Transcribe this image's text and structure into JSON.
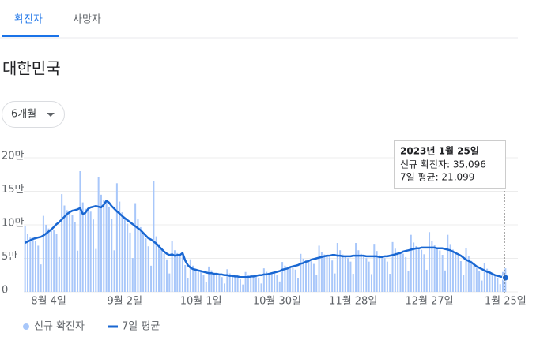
{
  "tabs": [
    "확진자",
    "사망자"
  ],
  "region": "대한민국",
  "range_selector": "6개월",
  "chart_data": {
    "type": "bar_line",
    "categories": [
      null,
      null,
      null,
      null,
      null,
      null,
      null,
      null,
      null,
      "8월 4일",
      null,
      null,
      null,
      null,
      null,
      null,
      null,
      null,
      null,
      null,
      null,
      null,
      null,
      null,
      null,
      null,
      null,
      null,
      null,
      null,
      null,
      null,
      null,
      null,
      null,
      null,
      null,
      null,
      "9월 2일",
      null,
      null,
      null,
      null,
      null,
      null,
      null,
      null,
      null,
      null,
      null,
      null,
      null,
      null,
      null,
      null,
      null,
      null,
      null,
      null,
      null,
      null,
      null,
      null,
      null,
      null,
      null,
      null,
      "10월 1일",
      null,
      null,
      null,
      null,
      null,
      null,
      null,
      null,
      null,
      null,
      null,
      null,
      null,
      null,
      null,
      null,
      null,
      null,
      null,
      null,
      null,
      null,
      null,
      null,
      null,
      null,
      null,
      null,
      "10월 30일",
      null,
      null,
      null,
      null,
      null,
      null,
      null,
      null,
      null,
      null,
      null,
      null,
      null,
      null,
      null,
      null,
      null,
      null,
      null,
      null,
      null,
      null,
      null,
      null,
      null,
      null,
      null,
      null,
      "11월 28일",
      null,
      null,
      null,
      null,
      null,
      null,
      null,
      null,
      null,
      null,
      null,
      null,
      null,
      null,
      null,
      null,
      null,
      null,
      null,
      null,
      null,
      null,
      null,
      null,
      null,
      null,
      null,
      null,
      "12월 27일",
      null,
      null,
      null,
      null,
      null,
      null,
      null,
      null,
      null,
      null,
      null,
      null,
      null,
      null,
      null,
      null,
      null,
      null,
      null,
      null,
      null,
      null,
      null,
      null,
      null,
      null,
      null,
      null,
      "1월 25일"
    ],
    "series": [
      {
        "name": "신규 확진자",
        "color": "#a8c7fa",
        "values": [
          98600,
          86300,
          80900,
          79000,
          76000,
          68900,
          41000,
          113400,
          100100,
          94500,
          93000,
          92200,
          85900,
          52000,
          145800,
          128800,
          121800,
          119000,
          115000,
          103700,
          61500,
          180000,
          133400,
          123900,
          124000,
          119700,
          108000,
          64000,
          171500,
          144900,
          136500,
          136000,
          126400,
          108800,
          62000,
          162000,
          134600,
          118700,
          110000,
          101700,
          88400,
          50500,
          132300,
          109300,
          96600,
          88000,
          79800,
          68000,
          39000,
          165000,
          82800,
          71400,
          64000,
          57000,
          48500,
          27500,
          75600,
          62100,
          57800,
          55000,
          55100,
          40000,
          20000,
          48600,
          39100,
          34700,
          32000,
          29500,
          25500,
          14500,
          37800,
          32200,
          28400,
          27000,
          24700,
          22100,
          12500,
          33800,
          27600,
          25200,
          23000,
          21900,
          18700,
          11000,
          29700,
          25300,
          24200,
          23000,
          22800,
          21300,
          12500,
          35100,
          29900,
          28400,
          28000,
          27600,
          25500,
          15500,
          44600,
          39100,
          36800,
          37000,
          36100,
          33200,
          20000,
          56700,
          49500,
          47300,
          46000,
          45600,
          41700,
          25000,
          68900,
          59800,
          55700,
          54000,
          51300,
          46800,
          27500,
          72900,
          62100,
          55700,
          53000,
          50400,
          45100,
          27000,
          72900,
          62100,
          56700,
          54000,
          50400,
          45100,
          26500,
          71600,
          61000,
          54600,
          52000,
          50400,
          45100,
          27000,
          74300,
          64400,
          59900,
          58000,
          57000,
          51900,
          31000,
          85100,
          73600,
          68300,
          65000,
          62700,
          56100,
          33000,
          89100,
          75900,
          69300,
          65000,
          61800,
          55300,
          32000,
          85100,
          71300,
          63000,
          58000,
          53200,
          45900,
          25500,
          64800,
          52900,
          46200,
          41000,
          36100,
          30600,
          17000,
          43200,
          34500,
          30500,
          27000,
          23800,
          20400,
          11500,
          29700,
          35096
        ]
      },
      {
        "name": "7일 평균",
        "color": "#1967d2",
        "values": [
          73000,
          75000,
          77000,
          79000,
          80000,
          81000,
          82000,
          84000,
          87000,
          90000,
          93000,
          97000,
          101000,
          104000,
          108000,
          112000,
          116000,
          119000,
          121000,
          122000,
          123000,
          125000,
          116000,
          118000,
          124000,
          126000,
          127000,
          128000,
          127000,
          126000,
          130000,
          136000,
          133000,
          128000,
          124000,
          120000,
          117000,
          113000,
          110000,
          107000,
          104000,
          101000,
          98000,
          95000,
          92000,
          88000,
          84000,
          80000,
          78000,
          75000,
          72000,
          68000,
          64000,
          60000,
          57000,
          55000,
          56000,
          54000,
          55000,
          55000,
          58000,
          47000,
          40000,
          36000,
          34000,
          33000,
          32000,
          31000,
          30000,
          29000,
          28000,
          28000,
          27000,
          27000,
          26000,
          26000,
          25000,
          25000,
          24000,
          24000,
          23000,
          23000,
          22000,
          22000,
          22000,
          22000,
          23000,
          23000,
          24000,
          25000,
          25000,
          26000,
          26000,
          27000,
          28000,
          29000,
          30000,
          31000,
          33000,
          34000,
          35000,
          37000,
          38000,
          39000,
          40000,
          42000,
          43000,
          45000,
          46000,
          48000,
          49000,
          50000,
          51000,
          52000,
          53000,
          54000,
          54000,
          55000,
          55000,
          54000,
          54000,
          53000,
          53000,
          53000,
          53000,
          54000,
          54000,
          54000,
          54000,
          54000,
          53000,
          53000,
          53000,
          53000,
          53000,
          52000,
          52000,
          53000,
          53000,
          54000,
          55000,
          56000,
          57000,
          58000,
          60000,
          61000,
          62000,
          63000,
          64000,
          65000,
          65000,
          66000,
          66000,
          66000,
          66000,
          66000,
          66000,
          65000,
          65000,
          65000,
          64000,
          63000,
          62000,
          60000,
          58000,
          56000,
          54000,
          51000,
          48000,
          46000,
          44000,
          41000,
          38000,
          36000,
          34000,
          32000,
          30000,
          29000,
          27000,
          25000,
          24000,
          23000,
          22000,
          21099
        ]
      }
    ],
    "ylim": [
      0,
      200000
    ],
    "yticks": [
      0,
      {
        "value": 50000,
        "label": "5만"
      },
      {
        "value": 100000,
        "label": "10만"
      },
      {
        "value": 150000,
        "label": "15만"
      },
      {
        "value": 200000,
        "label": "20만"
      }
    ],
    "grid": true,
    "tooltip": {
      "title": "2023년 1월 25일",
      "lines": [
        "신규 확진자: 35,096",
        "7일 평균: 21,099"
      ]
    }
  }
}
